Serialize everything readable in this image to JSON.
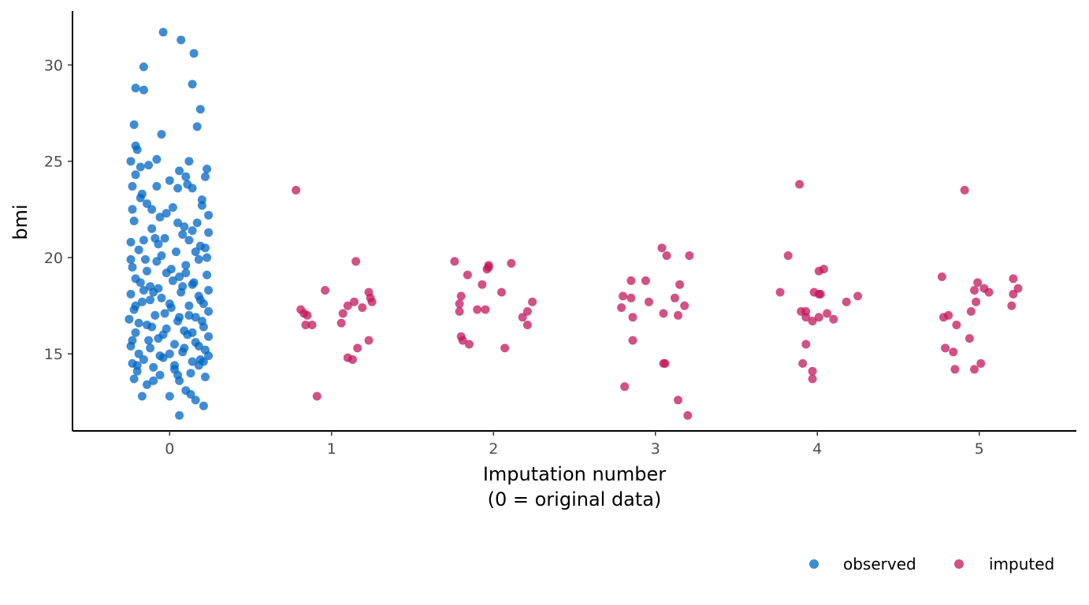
{
  "chart_data": {
    "type": "scatter",
    "title": "",
    "xlabel_line1": "Imputation number",
    "xlabel_line2": "(0 = original data)",
    "ylabel": "bmi",
    "xlim": [
      -0.6,
      5.6
    ],
    "ylim": [
      11.0,
      32.8
    ],
    "x_ticks": [
      0,
      1,
      2,
      3,
      4,
      5
    ],
    "x_tick_labels": [
      "0",
      "1",
      "2",
      "3",
      "4",
      "5"
    ],
    "y_ticks": [
      15,
      20,
      25,
      30
    ],
    "y_tick_labels": [
      "15",
      "20",
      "25",
      "30"
    ],
    "grid": false,
    "legend_position": "bottom-right",
    "colors": {
      "observed": "#0066c4",
      "imputed": "#c2185b"
    },
    "series": [
      {
        "name": "observed",
        "color": "#0066c4",
        "points": [
          [
            -0.04,
            31.7
          ],
          [
            0.07,
            31.3
          ],
          [
            0.15,
            30.6
          ],
          [
            -0.16,
            29.9
          ],
          [
            0.14,
            29.0
          ],
          [
            -0.21,
            28.8
          ],
          [
            -0.16,
            28.7
          ],
          [
            0.19,
            27.7
          ],
          [
            -0.22,
            26.9
          ],
          [
            0.17,
            26.8
          ],
          [
            -0.05,
            26.4
          ],
          [
            -0.21,
            25.8
          ],
          [
            -0.2,
            25.6
          ],
          [
            -0.24,
            25.0
          ],
          [
            -0.08,
            25.1
          ],
          [
            0.12,
            25.0
          ],
          [
            0.23,
            24.6
          ],
          [
            -0.21,
            24.3
          ],
          [
            0.06,
            24.5
          ],
          [
            -0.13,
            24.8
          ],
          [
            0.22,
            24.2
          ],
          [
            -0.23,
            23.7
          ],
          [
            0.11,
            23.8
          ],
          [
            -0.17,
            23.3
          ],
          [
            0.05,
            23.6
          ],
          [
            0.2,
            23.0
          ],
          [
            -0.08,
            23.7
          ],
          [
            0.14,
            23.6
          ],
          [
            -0.23,
            22.5
          ],
          [
            -0.14,
            22.8
          ],
          [
            0.02,
            22.6
          ],
          [
            0.24,
            22.2
          ],
          [
            -0.06,
            22.1
          ],
          [
            0.17,
            21.8
          ],
          [
            -0.22,
            21.9
          ],
          [
            -0.11,
            21.5
          ],
          [
            0.09,
            21.6
          ],
          [
            0.24,
            21.3
          ],
          [
            -0.24,
            20.8
          ],
          [
            -0.03,
            21.0
          ],
          [
            0.12,
            20.9
          ],
          [
            0.22,
            20.5
          ],
          [
            -0.19,
            20.4
          ],
          [
            0.04,
            20.3
          ],
          [
            -0.08,
            19.8
          ],
          [
            0.18,
            19.9
          ],
          [
            -0.23,
            19.5
          ],
          [
            0.1,
            19.6
          ],
          [
            -0.14,
            19.3
          ],
          [
            0.23,
            19.1
          ],
          [
            -0.02,
            19.2
          ],
          [
            -0.21,
            18.9
          ],
          [
            0.15,
            18.7
          ],
          [
            0.02,
            18.8
          ],
          [
            -0.12,
            18.5
          ],
          [
            0.24,
            18.3
          ],
          [
            -0.24,
            18.1
          ],
          [
            0.07,
            18.2
          ],
          [
            -0.05,
            17.9
          ],
          [
            0.19,
            17.8
          ],
          [
            -0.17,
            17.7
          ],
          [
            0.12,
            17.5
          ],
          [
            -0.22,
            17.3
          ],
          [
            0.01,
            17.4
          ],
          [
            0.24,
            17.2
          ],
          [
            -0.09,
            17.0
          ],
          [
            0.16,
            16.9
          ],
          [
            -0.25,
            16.8
          ],
          [
            0.05,
            16.7
          ],
          [
            -0.14,
            16.5
          ],
          [
            0.21,
            16.4
          ],
          [
            -0.02,
            16.3
          ],
          [
            -0.21,
            16.1
          ],
          [
            0.11,
            16.0
          ],
          [
            0.24,
            15.9
          ],
          [
            -0.07,
            15.8
          ],
          [
            0.16,
            15.6
          ],
          [
            -0.24,
            15.4
          ],
          [
            0.03,
            15.5
          ],
          [
            -0.12,
            15.3
          ],
          [
            0.22,
            15.2
          ],
          [
            -0.19,
            15.0
          ],
          [
            0.08,
            15.1
          ],
          [
            0.24,
            14.9
          ],
          [
            -0.04,
            14.8
          ],
          [
            0.14,
            14.6
          ],
          [
            -0.23,
            14.5
          ],
          [
            -0.1,
            14.3
          ],
          [
            0.18,
            14.4
          ],
          [
            0.03,
            14.2
          ],
          [
            -0.2,
            14.1
          ],
          [
            0.13,
            14.0
          ],
          [
            -0.06,
            13.9
          ],
          [
            0.22,
            13.8
          ],
          [
            -0.22,
            13.7
          ],
          [
            0.06,
            13.6
          ],
          [
            -0.14,
            13.4
          ],
          [
            0.1,
            13.1
          ],
          [
            -0.17,
            12.8
          ],
          [
            0.0,
            12.8
          ],
          [
            0.16,
            12.6
          ],
          [
            0.21,
            12.3
          ],
          [
            0.06,
            11.8
          ],
          [
            -0.18,
            23.1
          ],
          [
            0.0,
            24.0
          ],
          [
            -0.02,
            22.3
          ],
          [
            0.2,
            22.7
          ],
          [
            0.08,
            21.2
          ],
          [
            -0.16,
            20.9
          ],
          [
            0.19,
            20.6
          ],
          [
            -0.05,
            20.1
          ],
          [
            0.01,
            19.4
          ],
          [
            -0.18,
            18.7
          ],
          [
            0.14,
            18.6
          ],
          [
            -0.1,
            18.2
          ],
          [
            0.21,
            17.6
          ],
          [
            -0.03,
            17.1
          ],
          [
            -0.19,
            16.6
          ],
          [
            0.09,
            16.2
          ],
          [
            -0.13,
            15.7
          ],
          [
            0.18,
            15.4
          ],
          [
            0.0,
            15.0
          ],
          [
            -0.16,
            14.7
          ],
          [
            0.19,
            14.7
          ],
          [
            0.05,
            13.9
          ],
          [
            -0.1,
            13.6
          ],
          [
            0.13,
            12.9
          ],
          [
            -0.18,
            24.7
          ],
          [
            0.1,
            24.2
          ],
          [
            -0.11,
            22.5
          ],
          [
            0.14,
            21.4
          ],
          [
            -0.07,
            20.7
          ],
          [
            0.23,
            20.0
          ],
          [
            -0.15,
            19.9
          ],
          [
            0.06,
            19.0
          ],
          [
            -0.07,
            18.4
          ],
          [
            0.18,
            18.0
          ],
          [
            -0.21,
            17.5
          ],
          [
            0.06,
            16.9
          ],
          [
            -0.11,
            16.4
          ],
          [
            0.14,
            16.1
          ],
          [
            -0.23,
            15.7
          ],
          [
            0.09,
            15.3
          ],
          [
            -0.06,
            14.9
          ],
          [
            0.21,
            14.6
          ],
          [
            -0.2,
            14.4
          ],
          [
            0.03,
            14.4
          ],
          [
            0.1,
            19.2
          ],
          [
            -0.24,
            19.9
          ],
          [
            0.16,
            20.3
          ],
          [
            -0.09,
            21.0
          ],
          [
            0.05,
            21.8
          ],
          [
            -0.12,
            17.8
          ],
          [
            0.12,
            17.0
          ],
          [
            -0.04,
            16.0
          ],
          [
            0.0,
            17.6
          ],
          [
            0.2,
            16.7
          ],
          [
            -0.16,
            18.3
          ],
          [
            0.08,
            18.5
          ]
        ]
      },
      {
        "name": "imputed",
        "color": "#c2185b",
        "points": [
          [
            0.78,
            23.5
          ],
          [
            1.15,
            19.8
          ],
          [
            0.96,
            18.3
          ],
          [
            1.23,
            18.2
          ],
          [
            1.24,
            17.9
          ],
          [
            1.25,
            17.7
          ],
          [
            1.14,
            17.7
          ],
          [
            1.1,
            17.5
          ],
          [
            1.19,
            17.4
          ],
          [
            0.81,
            17.3
          ],
          [
            0.83,
            17.1
          ],
          [
            0.85,
            17.0
          ],
          [
            1.07,
            17.1
          ],
          [
            1.06,
            16.6
          ],
          [
            0.84,
            16.5
          ],
          [
            0.88,
            16.5
          ],
          [
            1.23,
            15.7
          ],
          [
            1.16,
            15.3
          ],
          [
            1.1,
            14.8
          ],
          [
            1.13,
            14.7
          ],
          [
            0.91,
            12.8
          ],
          [
            1.76,
            19.8
          ],
          [
            1.97,
            19.6
          ],
          [
            1.97,
            19.5
          ],
          [
            2.11,
            19.7
          ],
          [
            1.96,
            19.4
          ],
          [
            1.84,
            19.1
          ],
          [
            1.93,
            18.6
          ],
          [
            2.05,
            18.2
          ],
          [
            1.8,
            18.0
          ],
          [
            1.79,
            17.6
          ],
          [
            2.24,
            17.7
          ],
          [
            1.79,
            17.2
          ],
          [
            1.9,
            17.3
          ],
          [
            1.95,
            17.3
          ],
          [
            2.21,
            17.2
          ],
          [
            2.18,
            16.9
          ],
          [
            2.21,
            16.5
          ],
          [
            1.8,
            15.9
          ],
          [
            1.81,
            15.7
          ],
          [
            1.85,
            15.5
          ],
          [
            2.07,
            15.3
          ],
          [
            3.04,
            20.5
          ],
          [
            3.07,
            20.1
          ],
          [
            3.21,
            20.1
          ],
          [
            2.85,
            18.8
          ],
          [
            2.94,
            18.8
          ],
          [
            3.15,
            18.6
          ],
          [
            2.8,
            18.0
          ],
          [
            2.85,
            17.9
          ],
          [
            3.12,
            17.9
          ],
          [
            2.96,
            17.7
          ],
          [
            3.18,
            17.5
          ],
          [
            2.79,
            17.4
          ],
          [
            3.05,
            17.1
          ],
          [
            3.14,
            17.0
          ],
          [
            2.86,
            16.9
          ],
          [
            2.86,
            15.7
          ],
          [
            3.05,
            14.5
          ],
          [
            3.06,
            14.5
          ],
          [
            2.81,
            13.3
          ],
          [
            3.14,
            12.6
          ],
          [
            3.2,
            11.8
          ],
          [
            3.89,
            23.8
          ],
          [
            3.82,
            20.1
          ],
          [
            4.04,
            19.4
          ],
          [
            4.01,
            19.3
          ],
          [
            3.77,
            18.2
          ],
          [
            3.98,
            18.2
          ],
          [
            4.01,
            18.1
          ],
          [
            4.02,
            18.1
          ],
          [
            4.25,
            18.0
          ],
          [
            4.18,
            17.7
          ],
          [
            3.9,
            17.2
          ],
          [
            3.93,
            17.2
          ],
          [
            4.06,
            17.1
          ],
          [
            3.93,
            16.9
          ],
          [
            4.01,
            16.9
          ],
          [
            4.1,
            16.8
          ],
          [
            3.97,
            16.7
          ],
          [
            3.93,
            15.5
          ],
          [
            3.91,
            14.5
          ],
          [
            3.97,
            14.1
          ],
          [
            3.97,
            13.7
          ],
          [
            4.91,
            23.5
          ],
          [
            4.77,
            19.0
          ],
          [
            5.21,
            18.9
          ],
          [
            4.99,
            18.7
          ],
          [
            5.03,
            18.4
          ],
          [
            5.24,
            18.4
          ],
          [
            4.97,
            18.3
          ],
          [
            5.06,
            18.2
          ],
          [
            5.21,
            18.1
          ],
          [
            4.98,
            17.7
          ],
          [
            5.2,
            17.5
          ],
          [
            4.95,
            17.2
          ],
          [
            4.81,
            17.0
          ],
          [
            4.78,
            16.9
          ],
          [
            4.86,
            16.5
          ],
          [
            4.94,
            15.8
          ],
          [
            4.79,
            15.3
          ],
          [
            4.84,
            15.1
          ],
          [
            5.01,
            14.5
          ],
          [
            4.85,
            14.2
          ],
          [
            4.97,
            14.2
          ]
        ]
      }
    ]
  }
}
